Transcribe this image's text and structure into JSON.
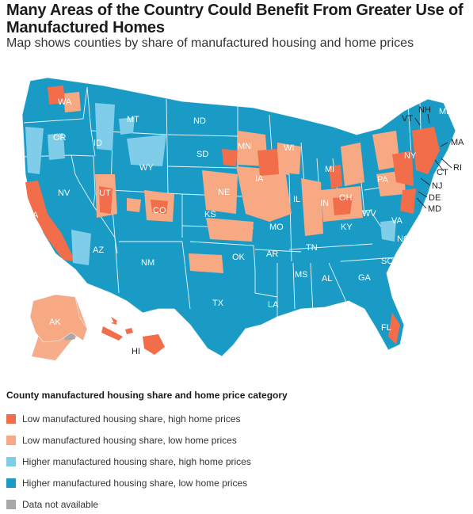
{
  "title": "Many Areas of the Country Could Benefit From Greater Use of Manufactured Homes",
  "subtitle": "Map shows counties by share of manufactured housing and home prices",
  "legend": {
    "title": "County manufactured housing share and home price category",
    "items": [
      {
        "label": "Low manufactured housing share, high home prices",
        "color": "#f26d4a"
      },
      {
        "label": "Low manufactured housing share, low home prices",
        "color": "#f7a983"
      },
      {
        "label": "Higher manufactured housing share, high home prices",
        "color": "#7fcde8"
      },
      {
        "label": "Higher manufactured housing share, low home prices",
        "color": "#1a9bc6"
      },
      {
        "label": "Data not available",
        "color": "#a8a8a8"
      }
    ]
  },
  "states": {
    "WA": "WA",
    "OR": "OR",
    "CA": "CA",
    "NV": "NV",
    "ID": "ID",
    "MT": "MT",
    "WY": "WY",
    "UT": "UT",
    "AZ": "AZ",
    "CO": "CO",
    "NM": "NM",
    "ND": "ND",
    "SD": "SD",
    "NE": "NE",
    "KS": "KS",
    "OK": "OK",
    "TX": "TX",
    "MN": "MN",
    "IA": "IA",
    "MO": "MO",
    "AR": "AR",
    "LA": "LA",
    "WI": "WI",
    "IL": "IL",
    "MI": "MI",
    "IN": "IN",
    "OH": "OH",
    "KY": "KY",
    "TN": "TN",
    "MS": "MS",
    "AL": "AL",
    "GA": "GA",
    "FL": "FL",
    "SC": "SC",
    "NC": "NC",
    "VA": "VA",
    "WV": "WV",
    "PA": "PA",
    "NY": "NY",
    "VT": "VT",
    "NH": "NH",
    "ME": "ME",
    "MA": "MA",
    "RI": "RI",
    "CT": "CT",
    "NJ": "NJ",
    "DE": "DE",
    "MD": "MD",
    "AK": "AK",
    "HI": "HI"
  }
}
